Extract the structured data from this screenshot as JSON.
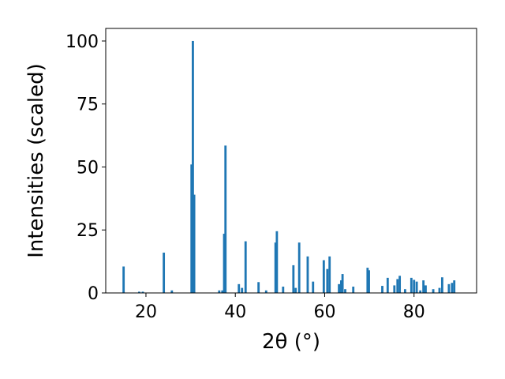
{
  "chart_data": {
    "type": "bar",
    "xlabel": "2θ (°)",
    "ylabel": "Intensities (scaled)",
    "xlim": [
      11,
      94
    ],
    "ylim": [
      0,
      105
    ],
    "xticks": [
      20,
      40,
      60,
      80
    ],
    "yticks": [
      0,
      25,
      50,
      75,
      100
    ],
    "grid": false,
    "bar_width": 0.5,
    "bar_color": "#1f77b4",
    "x": [
      15.0,
      18.5,
      19.3,
      24.0,
      25.8,
      30.2,
      30.5,
      30.8,
      36.4,
      37.1,
      37.5,
      37.8,
      40.8,
      41.5,
      42.3,
      45.2,
      46.9,
      49.0,
      49.3,
      50.7,
      53.0,
      53.5,
      54.3,
      56.2,
      57.4,
      59.8,
      60.6,
      61.1,
      63.2,
      63.7,
      64.0,
      64.6,
      66.4,
      69.6,
      69.9,
      72.9,
      74.1,
      75.6,
      76.3,
      76.8,
      78.0,
      79.4,
      80.0,
      80.6,
      81.4,
      82.1,
      82.6,
      84.3,
      85.7,
      86.3,
      87.8,
      88.5,
      89.0
    ],
    "values": [
      10.5,
      0.5,
      0.5,
      16.0,
      1.0,
      51.0,
      100.0,
      39.0,
      1.0,
      1.0,
      23.5,
      58.5,
      3.5,
      2.0,
      20.5,
      4.3,
      1.0,
      20.0,
      24.5,
      2.5,
      11.0,
      2.0,
      20.0,
      14.5,
      4.5,
      13.0,
      9.5,
      14.5,
      3.5,
      5.0,
      7.5,
      1.5,
      2.5,
      10.0,
      9.0,
      2.8,
      6.0,
      3.0,
      5.5,
      6.8,
      1.5,
      6.0,
      5.2,
      4.5,
      1.0,
      5.0,
      3.0,
      1.5,
      2.0,
      6.2,
      3.5,
      4.0,
      5.0
    ]
  }
}
